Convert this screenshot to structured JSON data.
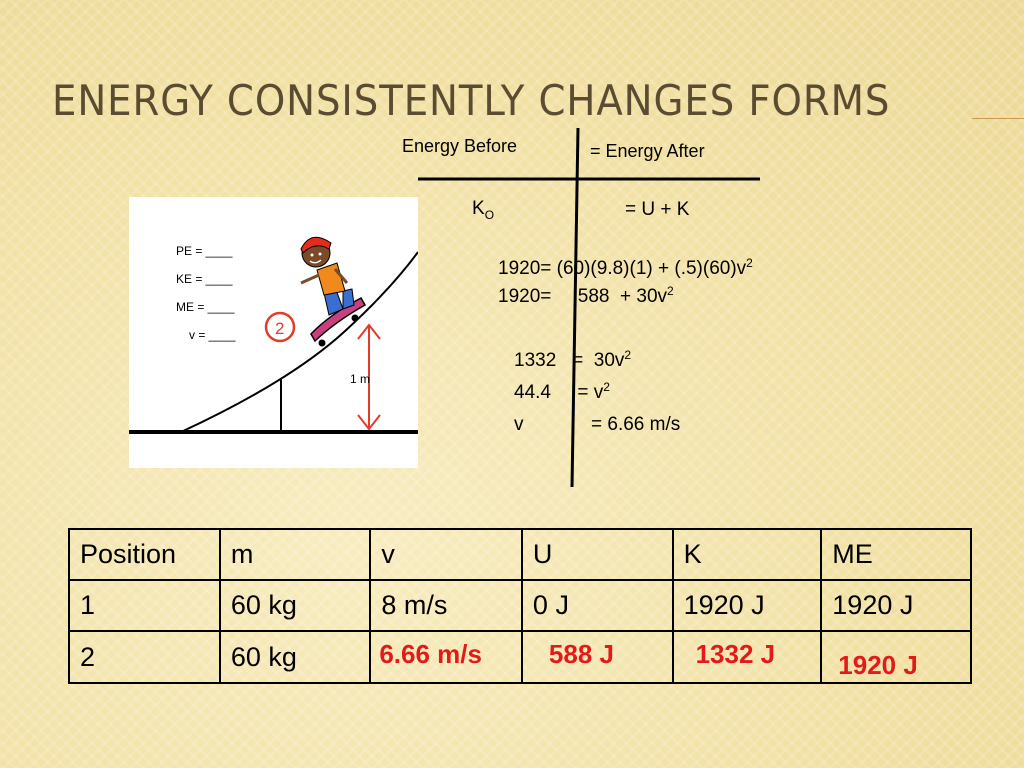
{
  "slide": {
    "title": "Energy Consistently Changes Forms"
  },
  "tchart": {
    "before_label": "Energy Before",
    "after_label": "= Energy After",
    "ko_main": "K",
    "ko_sub": "O",
    "equation": "= U + K"
  },
  "work": {
    "line1_pre": "1920= (60)(9.8)(1) + (.5)(60)v",
    "line1_sup": "2",
    "line2_pre": "1920=     588  + 30v",
    "line2_sup": "2",
    "line3_pre": "1332   =  30v",
    "line3_sup": "2",
    "line4_pre": "44.4     = v",
    "line4_sup": "2",
    "line5_a": "v",
    "line5_b": "= 6.66 m/s"
  },
  "diagram": {
    "pe_label": "PE = ____",
    "ke_label": "KE = ____",
    "me_label": "ME = ____",
    "v_label": "v = ____",
    "position_number": "2",
    "height_label": "1 m"
  },
  "table": {
    "headers": [
      "Position",
      "m",
      "v",
      "U",
      "K",
      "ME"
    ],
    "rows": [
      [
        "1",
        "60 kg",
        "8 m/s",
        "0 J",
        "1920 J",
        "1920 J"
      ],
      [
        "2",
        "60 kg",
        "6.66 m/s",
        "588 J",
        "1332 J",
        "1920 J"
      ]
    ]
  },
  "colors": {
    "title": "#5a4b33",
    "answer_red": "#e31a1a",
    "background": "#f3e3a8"
  }
}
